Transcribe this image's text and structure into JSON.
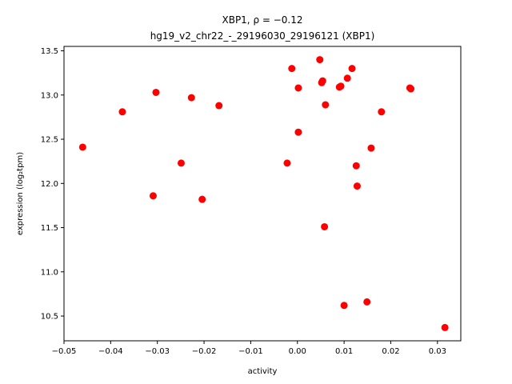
{
  "chart_data": {
    "type": "scatter",
    "title_line1": "XBP1, ρ = −0.12",
    "title_line2": "hg19_v2_chr22_-_29196030_29196121 (XBP1)",
    "xlabel": "activity",
    "ylabel": "expression (log₂tpm)",
    "xlim": [
      -0.05,
      0.035
    ],
    "ylim": [
      10.22,
      13.55
    ],
    "xticks": [
      -0.05,
      -0.04,
      -0.03,
      -0.02,
      -0.01,
      0.0,
      0.01,
      0.02,
      0.03
    ],
    "xtick_labels": [
      "−0.05",
      "−0.04",
      "−0.03",
      "−0.02",
      "−0.01",
      "0.00",
      "0.01",
      "0.02",
      "0.03"
    ],
    "yticks": [
      10.5,
      11.0,
      11.5,
      12.0,
      12.5,
      13.0,
      13.5
    ],
    "ytick_labels": [
      "10.5",
      "11.0",
      "11.5",
      "12.0",
      "12.5",
      "13.0",
      "13.5"
    ],
    "grid": false,
    "marker_color": "#ff0000",
    "points": [
      {
        "x": -0.046,
        "y": 12.41
      },
      {
        "x": -0.0375,
        "y": 12.81
      },
      {
        "x": -0.0303,
        "y": 13.03
      },
      {
        "x": -0.0309,
        "y": 11.86
      },
      {
        "x": -0.0249,
        "y": 12.23
      },
      {
        "x": -0.0227,
        "y": 12.97
      },
      {
        "x": -0.0204,
        "y": 11.82
      },
      {
        "x": -0.0168,
        "y": 12.88
      },
      {
        "x": -0.0022,
        "y": 12.23
      },
      {
        "x": -0.0012,
        "y": 13.3
      },
      {
        "x": 0.0002,
        "y": 13.08
      },
      {
        "x": 0.0002,
        "y": 12.58
      },
      {
        "x": 0.0048,
        "y": 13.4
      },
      {
        "x": 0.0052,
        "y": 13.14
      },
      {
        "x": 0.0054,
        "y": 13.16
      },
      {
        "x": 0.006,
        "y": 12.89
      },
      {
        "x": 0.0058,
        "y": 11.51
      },
      {
        "x": 0.009,
        "y": 13.09
      },
      {
        "x": 0.0093,
        "y": 13.1
      },
      {
        "x": 0.0107,
        "y": 13.19
      },
      {
        "x": 0.0117,
        "y": 13.3
      },
      {
        "x": 0.01,
        "y": 10.62
      },
      {
        "x": 0.0126,
        "y": 12.2
      },
      {
        "x": 0.0128,
        "y": 11.97
      },
      {
        "x": 0.0149,
        "y": 10.66
      },
      {
        "x": 0.0158,
        "y": 12.4
      },
      {
        "x": 0.018,
        "y": 12.81
      },
      {
        "x": 0.0241,
        "y": 13.08
      },
      {
        "x": 0.0243,
        "y": 13.07
      },
      {
        "x": 0.0316,
        "y": 10.37
      }
    ]
  }
}
